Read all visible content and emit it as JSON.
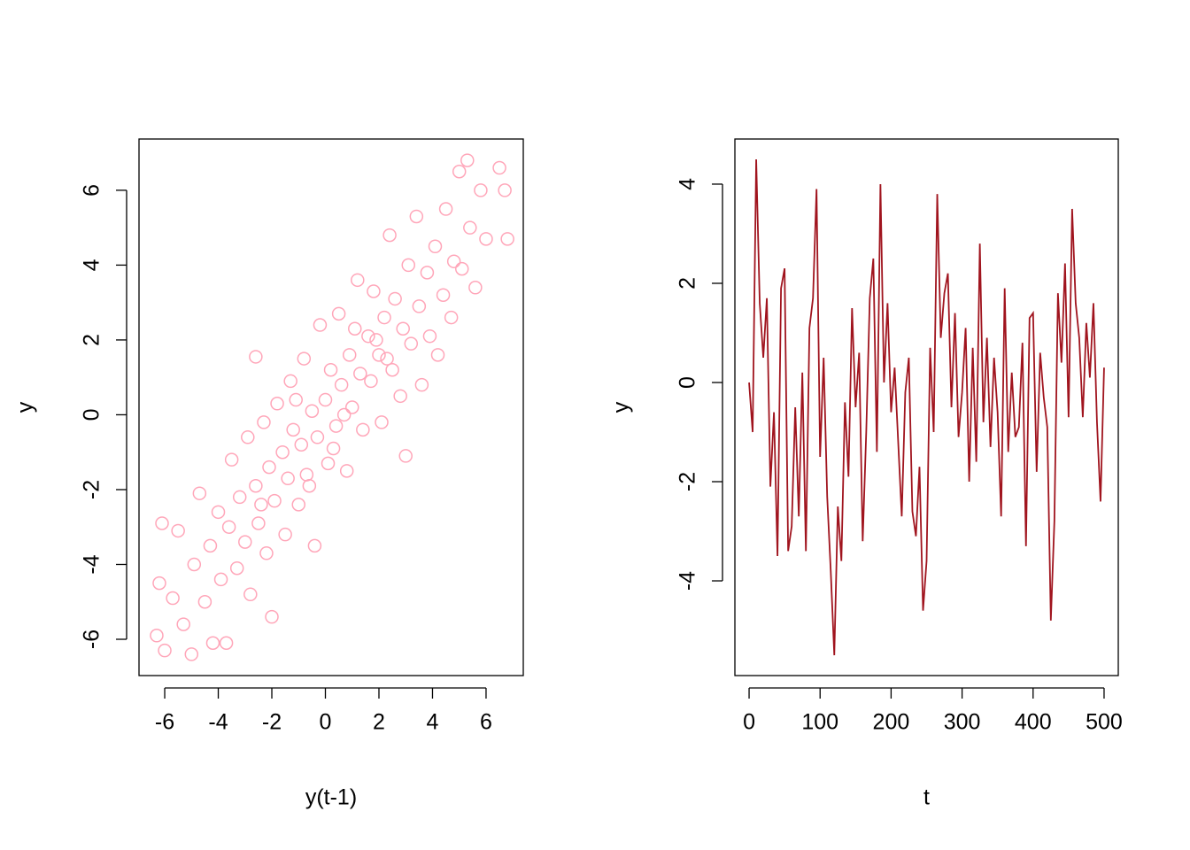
{
  "chart_data": [
    {
      "type": "scatter",
      "xlabel": "y(t-1)",
      "ylabel": "y",
      "color": "#ffa6b9",
      "xlim": [
        -6.96,
        7.39
      ],
      "ylim": [
        -6.97,
        7.37
      ],
      "xticks": [
        -6,
        -4,
        -2,
        0,
        2,
        4,
        6
      ],
      "yticks": [
        -6,
        -4,
        -2,
        0,
        2,
        4,
        6
      ],
      "x": [
        -6.3,
        -6.2,
        -6.1,
        -6.0,
        -5.7,
        -5.5,
        -5.3,
        -5.0,
        -4.9,
        -4.7,
        -4.5,
        -4.3,
        -4.2,
        -4.0,
        -3.9,
        -3.7,
        -3.6,
        -3.5,
        -3.3,
        -3.2,
        -3.0,
        -2.9,
        -2.8,
        -2.6,
        -2.6,
        -2.5,
        -2.3,
        -2.2,
        -2.1,
        -2.0,
        -1.9,
        -1.8,
        -1.6,
        -1.5,
        -1.4,
        -1.3,
        -1.2,
        -1.0,
        -0.9,
        -0.8,
        -0.7,
        -0.5,
        -0.4,
        -0.3,
        -0.2,
        0.0,
        0.1,
        0.2,
        0.4,
        0.5,
        0.6,
        0.8,
        0.9,
        1.0,
        1.2,
        1.3,
        1.4,
        1.6,
        1.7,
        1.8,
        2.0,
        2.1,
        2.2,
        2.4,
        2.5,
        2.6,
        2.8,
        2.9,
        3.0,
        3.1,
        3.2,
        3.4,
        3.5,
        3.6,
        3.8,
        3.9,
        4.1,
        4.2,
        4.4,
        4.5,
        4.7,
        4.8,
        5.0,
        5.1,
        5.3,
        5.4,
        5.6,
        5.8,
        6.0,
        6.5,
        6.7,
        6.8,
        0.3,
        -0.6,
        1.1,
        -1.1,
        2.3,
        -2.4,
        0.7,
        1.9
      ],
      "values": [
        -5.9,
        -4.5,
        -2.9,
        -6.3,
        -4.9,
        -3.1,
        -5.6,
        -6.4,
        -4.0,
        -2.1,
        -5.0,
        -3.5,
        -6.1,
        -2.6,
        -4.4,
        -6.1,
        -3.0,
        -1.2,
        -4.1,
        -2.2,
        -3.4,
        -0.6,
        -4.8,
        1.55,
        -1.9,
        -2.9,
        -0.2,
        -3.7,
        -1.4,
        -5.4,
        -2.3,
        0.3,
        -1.0,
        -3.2,
        -1.7,
        0.9,
        -0.4,
        -2.4,
        -0.8,
        1.5,
        -1.6,
        0.1,
        -3.5,
        -0.6,
        2.4,
        0.4,
        -1.3,
        1.2,
        -0.3,
        2.7,
        0.8,
        -1.5,
        1.6,
        0.2,
        3.6,
        1.1,
        -0.4,
        2.1,
        0.9,
        3.3,
        1.6,
        -0.2,
        2.6,
        4.8,
        1.2,
        3.1,
        0.5,
        2.3,
        -1.1,
        4.0,
        1.9,
        5.3,
        2.9,
        0.8,
        3.8,
        2.1,
        4.5,
        1.6,
        3.2,
        5.5,
        2.6,
        4.1,
        6.5,
        3.9,
        6.8,
        5.0,
        3.4,
        6.0,
        4.7,
        6.6,
        6.0,
        4.7,
        -0.9,
        -1.9,
        2.3,
        0.4,
        1.5,
        -2.4,
        0.0,
        2.0
      ]
    },
    {
      "type": "line",
      "xlabel": "t",
      "ylabel": "y",
      "color": "#a0141e",
      "xlim": [
        -20,
        520
      ],
      "ylim": [
        -5.91,
        4.91
      ],
      "xticks": [
        0,
        100,
        200,
        300,
        400,
        500
      ],
      "yticks": [
        -4,
        -2,
        0,
        2,
        4
      ],
      "x": [
        0,
        5,
        10,
        15,
        20,
        25,
        30,
        35,
        40,
        45,
        50,
        55,
        60,
        65,
        70,
        75,
        80,
        85,
        90,
        95,
        100,
        105,
        110,
        115,
        120,
        125,
        130,
        135,
        140,
        145,
        150,
        155,
        160,
        165,
        170,
        175,
        180,
        185,
        190,
        195,
        200,
        205,
        210,
        215,
        220,
        225,
        230,
        235,
        240,
        245,
        250,
        255,
        260,
        265,
        270,
        275,
        280,
        285,
        290,
        295,
        300,
        305,
        310,
        315,
        320,
        325,
        330,
        335,
        340,
        345,
        350,
        355,
        360,
        365,
        370,
        375,
        380,
        385,
        390,
        395,
        400,
        405,
        410,
        415,
        420,
        425,
        430,
        435,
        440,
        445,
        450,
        455,
        460,
        465,
        470,
        475,
        480,
        485,
        490,
        495,
        500
      ],
      "values": [
        0,
        -1.0,
        4.5,
        1.6,
        0.5,
        1.7,
        -2.1,
        -0.6,
        -3.5,
        1.9,
        2.3,
        -3.4,
        -2.9,
        -0.5,
        -2.7,
        0.2,
        -3.4,
        1.1,
        1.7,
        3.9,
        -1.5,
        0.5,
        -2.3,
        -3.8,
        -5.5,
        -2.5,
        -3.6,
        -0.4,
        -1.9,
        1.5,
        -0.5,
        0.6,
        -3.2,
        -1.0,
        1.7,
        2.5,
        -1.4,
        4.0,
        0.0,
        1.6,
        -0.6,
        0.3,
        -1.2,
        -2.7,
        -0.2,
        0.5,
        -2.6,
        -3.1,
        -1.7,
        -4.6,
        -3.6,
        0.7,
        -1.0,
        3.8,
        0.9,
        1.8,
        2.2,
        -0.5,
        1.4,
        -1.1,
        -0.2,
        1.1,
        -2.0,
        0.7,
        -1.6,
        2.8,
        -0.8,
        0.9,
        -1.3,
        0.5,
        -0.6,
        -2.7,
        1.9,
        -1.4,
        0.2,
        -1.1,
        -0.9,
        0.8,
        -3.3,
        1.3,
        1.4,
        -1.8,
        0.6,
        -0.3,
        -0.9,
        -4.8,
        -2.8,
        1.8,
        0.4,
        2.4,
        -0.7,
        3.5,
        1.6,
        0.9,
        -0.7,
        1.2,
        0.1,
        1.6,
        -0.8,
        -2.4,
        0.3
      ]
    }
  ]
}
